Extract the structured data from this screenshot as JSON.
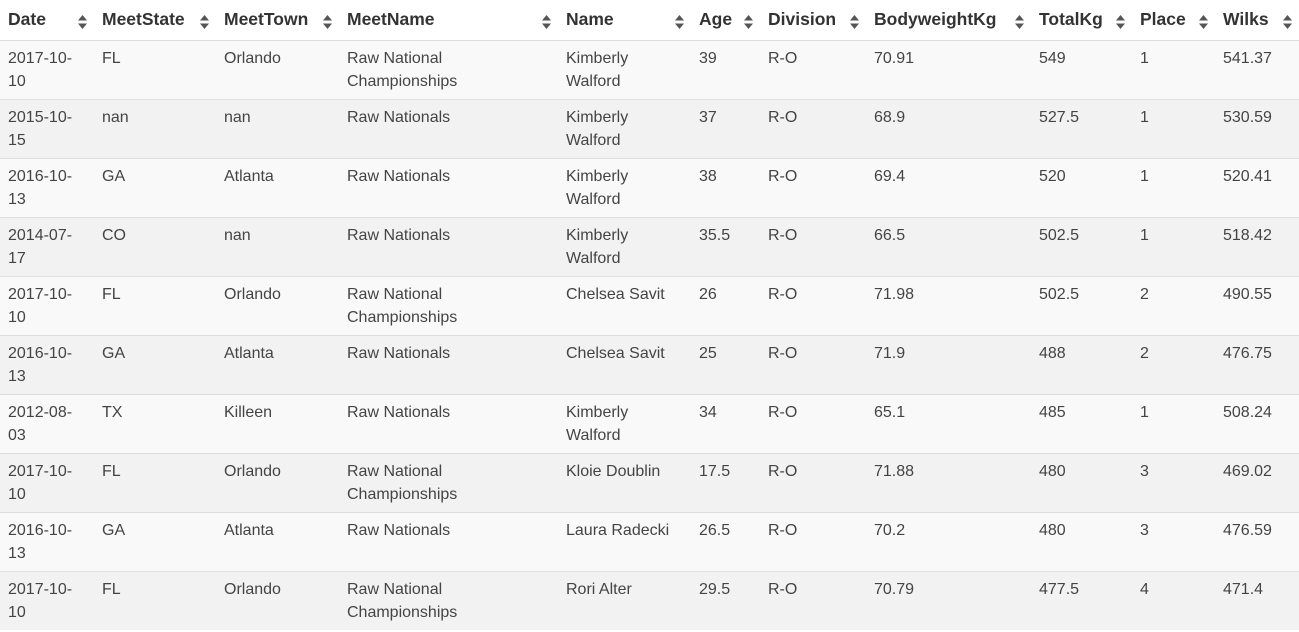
{
  "columns": [
    "Date",
    "MeetState",
    "MeetTown",
    "MeetName",
    "Name",
    "Age",
    "Division",
    "BodyweightKg",
    "TotalKg",
    "Place",
    "Wilks"
  ],
  "rows": [
    [
      "2017-10-10",
      "FL",
      "Orlando",
      "Raw National Championships",
      "Kimberly Walford",
      "39",
      "R-O",
      "70.91",
      "549",
      "1",
      "541.37"
    ],
    [
      "2015-10-15",
      "nan",
      "nan",
      "Raw Nationals",
      "Kimberly Walford",
      "37",
      "R-O",
      "68.9",
      "527.5",
      "1",
      "530.59"
    ],
    [
      "2016-10-13",
      "GA",
      "Atlanta",
      "Raw Nationals",
      "Kimberly Walford",
      "38",
      "R-O",
      "69.4",
      "520",
      "1",
      "520.41"
    ],
    [
      "2014-07-17",
      "CO",
      "nan",
      "Raw Nationals",
      "Kimberly Walford",
      "35.5",
      "R-O",
      "66.5",
      "502.5",
      "1",
      "518.42"
    ],
    [
      "2017-10-10",
      "FL",
      "Orlando",
      "Raw National Championships",
      "Chelsea Savit",
      "26",
      "R-O",
      "71.98",
      "502.5",
      "2",
      "490.55"
    ],
    [
      "2016-10-13",
      "GA",
      "Atlanta",
      "Raw Nationals",
      "Chelsea Savit",
      "25",
      "R-O",
      "71.9",
      "488",
      "2",
      "476.75"
    ],
    [
      "2012-08-03",
      "TX",
      "Killeen",
      "Raw Nationals",
      "Kimberly Walford",
      "34",
      "R-O",
      "65.1",
      "485",
      "1",
      "508.24"
    ],
    [
      "2017-10-10",
      "FL",
      "Orlando",
      "Raw National Championships",
      "Kloie Doublin",
      "17.5",
      "R-O",
      "71.88",
      "480",
      "3",
      "469.02"
    ],
    [
      "2016-10-13",
      "GA",
      "Atlanta",
      "Raw Nationals",
      "Laura Radecki",
      "26.5",
      "R-O",
      "70.2",
      "480",
      "3",
      "476.59"
    ],
    [
      "2017-10-10",
      "FL",
      "Orlando",
      "Raw National Championships",
      "Rori Alter",
      "29.5",
      "R-O",
      "70.79",
      "477.5",
      "4",
      "471.4"
    ]
  ]
}
